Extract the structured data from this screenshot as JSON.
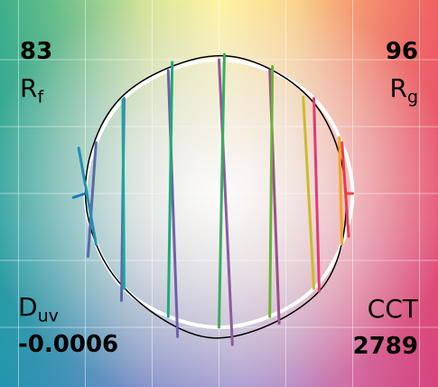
{
  "metrics": {
    "rf_value": "83",
    "rf_label_main": "R",
    "rf_label_sub": "f",
    "rg_value": "96",
    "rg_label_main": "R",
    "rg_label_sub": "g",
    "duv_label_main": "D",
    "duv_label_sub": "uv",
    "duv_value": "-0.0006",
    "cct_label": "CCT",
    "cct_value": "2789"
  },
  "chart_data": {
    "type": "line",
    "title": "",
    "xlim": [
      -1.5,
      1.5
    ],
    "ylim": [
      -1.5,
      1.5
    ],
    "grid": true,
    "series": [
      {
        "role": "reference",
        "color": "#ffffff",
        "points": [
          [
            0.0,
            1.0
          ],
          [
            0.71,
            0.71
          ],
          [
            1.0,
            0.0
          ],
          [
            0.71,
            -0.71
          ],
          [
            0.0,
            -1.0
          ],
          [
            -0.71,
            -0.71
          ],
          [
            -1.0,
            0.0
          ],
          [
            -0.71,
            0.71
          ]
        ]
      },
      {
        "role": "test",
        "color": "#000000",
        "points": [
          [
            0.02,
            1.03
          ],
          [
            0.69,
            0.7
          ],
          [
            0.95,
            0.0
          ],
          [
            0.75,
            -0.73
          ],
          [
            -0.04,
            -1.08
          ],
          [
            -0.75,
            -0.66
          ],
          [
            -1.0,
            0.03
          ],
          [
            -0.73,
            0.72
          ]
        ]
      }
    ],
    "hue_bins": {
      "colors": [
        "#e84640",
        "#ee3a4c",
        "#e53a72",
        "#9c4f8c",
        "#8c5ca0",
        "#7060a8",
        "#5a6aaa",
        "#5a6aaa",
        "#1f7bbd",
        "#1f90b3",
        "#18a89d",
        "#1eaa7b",
        "#3aab62",
        "#6bb338",
        "#c9bd2a",
        "#f0a624"
      ],
      "ref_points": [
        [
          1.0,
          0.0
        ],
        [
          0.92,
          0.38
        ],
        [
          0.71,
          0.71
        ],
        [
          0.38,
          0.92
        ],
        [
          0.0,
          1.0
        ],
        [
          -0.38,
          0.92
        ],
        [
          -0.71,
          0.71
        ],
        [
          -0.92,
          0.38
        ],
        [
          -1.0,
          0.0
        ],
        [
          -0.92,
          -0.38
        ],
        [
          -0.71,
          -0.71
        ],
        [
          -0.38,
          -0.92
        ],
        [
          0.0,
          -1.0
        ],
        [
          0.38,
          -0.92
        ],
        [
          0.71,
          -0.71
        ],
        [
          0.92,
          -0.38
        ]
      ],
      "test_points": [
        [
          0.95,
          0.0
        ],
        [
          0.97,
          -0.32
        ],
        [
          0.75,
          -0.73
        ],
        [
          0.45,
          -0.97
        ],
        [
          0.1,
          -1.13
        ],
        [
          -0.31,
          -1.07
        ],
        [
          -0.73,
          -0.8
        ],
        [
          -0.98,
          -0.47
        ],
        [
          -1.09,
          -0.03
        ],
        [
          -1.05,
          0.34
        ],
        [
          -0.72,
          0.7
        ],
        [
          -0.35,
          0.98
        ],
        [
          0.04,
          1.04
        ],
        [
          0.4,
          0.95
        ],
        [
          0.63,
          0.72
        ],
        [
          0.9,
          0.42
        ]
      ]
    }
  }
}
